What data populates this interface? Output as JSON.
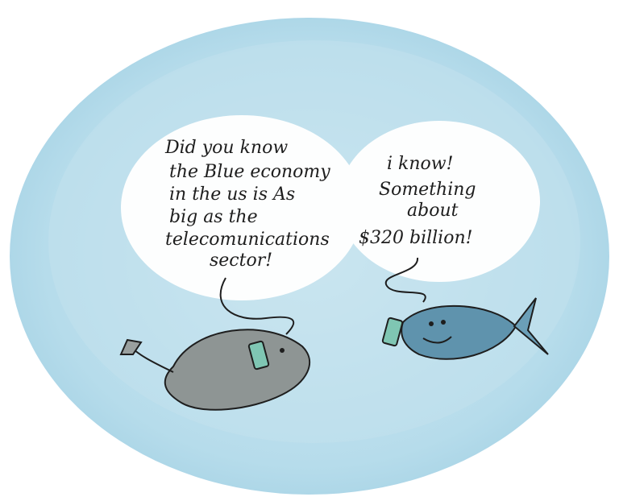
{
  "bubbles": [
    {
      "lines": [
        "Did you know",
        "the Blue economy",
        "in the us is As",
        "big as the",
        "telecomunications",
        "sector!"
      ]
    },
    {
      "lines": [
        "i know!",
        "Something",
        "about",
        "$320 billion!"
      ]
    }
  ]
}
